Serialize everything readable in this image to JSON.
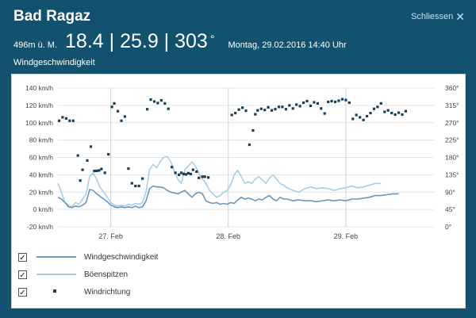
{
  "header": {
    "station": "Bad Ragaz",
    "elevation": "496m ü. M.",
    "values": "18.4 | 25.9 | 303",
    "degree": "°",
    "datetime": "Montag, 29.02.2016 14:40 Uhr",
    "close_label": "Schliessen"
  },
  "section_title": "Windgeschwindigkeit",
  "colors": {
    "background": "#13526f",
    "wind": "#6b98ba",
    "gusts": "#aacde3",
    "direction": "#163f59",
    "grid": "#e4e4e4"
  },
  "legend": [
    {
      "label": "Windgeschwindigkeit",
      "checked": true,
      "symbol": "line"
    },
    {
      "label": "Böenspitzen",
      "checked": true,
      "symbol": "line"
    },
    {
      "label": "Windrichtung",
      "checked": true,
      "symbol": "dot"
    }
  ],
  "chart_data": {
    "type": "line",
    "title": "Windgeschwindigkeit",
    "x_unit": "days since 26 Feb 2016 00:00",
    "xlim": [
      0.55,
      3.75
    ],
    "x_ticks": [
      {
        "x": 1.0,
        "label": "27. Feb"
      },
      {
        "x": 2.0,
        "label": "28. Feb"
      },
      {
        "x": 3.0,
        "label": "29. Feb"
      }
    ],
    "y_left": {
      "ticks": [
        -20,
        0,
        20,
        40,
        60,
        80,
        100,
        120,
        140
      ],
      "unit": "km/h",
      "ylim": [
        -20,
        140
      ]
    },
    "y_right": {
      "ticks": [
        0,
        45,
        90,
        135,
        180,
        225,
        270,
        315,
        360
      ],
      "unit": "°",
      "ylim": [
        0,
        360
      ]
    },
    "grid": {
      "horizontal": true,
      "vertical": true
    },
    "series": [
      {
        "name": "Windgeschwindigkeit",
        "axis": "left",
        "style": "line",
        "points": [
          [
            0.55,
            14
          ],
          [
            0.58,
            12
          ],
          [
            0.61,
            8
          ],
          [
            0.64,
            3
          ],
          [
            0.67,
            2
          ],
          [
            0.7,
            4
          ],
          [
            0.73,
            3
          ],
          [
            0.76,
            5
          ],
          [
            0.79,
            8
          ],
          [
            0.82,
            23
          ],
          [
            0.85,
            22
          ],
          [
            0.88,
            18
          ],
          [
            0.91,
            15
          ],
          [
            0.94,
            12
          ],
          [
            0.97,
            9
          ],
          [
            1.0,
            5
          ],
          [
            1.03,
            3
          ],
          [
            1.06,
            2
          ],
          [
            1.09,
            3
          ],
          [
            1.12,
            2
          ],
          [
            1.15,
            3
          ],
          [
            1.18,
            2
          ],
          [
            1.21,
            4
          ],
          [
            1.24,
            2
          ],
          [
            1.27,
            3
          ],
          [
            1.3,
            10
          ],
          [
            1.33,
            24
          ],
          [
            1.36,
            27
          ],
          [
            1.39,
            26
          ],
          [
            1.42,
            26
          ],
          [
            1.45,
            25
          ],
          [
            1.48,
            22
          ],
          [
            1.51,
            20
          ],
          [
            1.54,
            19
          ],
          [
            1.57,
            18
          ],
          [
            1.6,
            20
          ],
          [
            1.63,
            22
          ],
          [
            1.66,
            18
          ],
          [
            1.69,
            14
          ],
          [
            1.72,
            18
          ],
          [
            1.75,
            20
          ],
          [
            1.78,
            18
          ],
          [
            1.81,
            10
          ],
          [
            1.84,
            8
          ],
          [
            1.87,
            7
          ],
          [
            1.9,
            8
          ],
          [
            1.93,
            6
          ],
          [
            1.96,
            7
          ],
          [
            1.99,
            6
          ],
          [
            2.02,
            8
          ],
          [
            2.05,
            7
          ],
          [
            2.08,
            11
          ],
          [
            2.11,
            14
          ],
          [
            2.14,
            12
          ],
          [
            2.17,
            13
          ],
          [
            2.2,
            12
          ],
          [
            2.23,
            10
          ],
          [
            2.26,
            12
          ],
          [
            2.29,
            11
          ],
          [
            2.32,
            14
          ],
          [
            2.35,
            16
          ],
          [
            2.38,
            12
          ],
          [
            2.41,
            10
          ],
          [
            2.44,
            14
          ],
          [
            2.47,
            12
          ],
          [
            2.5,
            12
          ],
          [
            2.55,
            10
          ],
          [
            2.6,
            11
          ],
          [
            2.65,
            10
          ],
          [
            2.7,
            10
          ],
          [
            2.75,
            9
          ],
          [
            2.8,
            10
          ],
          [
            2.85,
            11
          ],
          [
            2.9,
            10
          ],
          [
            2.95,
            11
          ],
          [
            3.0,
            10
          ],
          [
            3.05,
            12
          ],
          [
            3.1,
            12
          ],
          [
            3.15,
            13
          ],
          [
            3.2,
            14
          ],
          [
            3.25,
            16
          ],
          [
            3.3,
            16
          ],
          [
            3.35,
            17
          ],
          [
            3.4,
            18
          ],
          [
            3.45,
            18
          ]
        ]
      },
      {
        "name": "Böenspitzen",
        "axis": "left",
        "style": "line",
        "points": [
          [
            0.55,
            30
          ],
          [
            0.58,
            20
          ],
          [
            0.61,
            8
          ],
          [
            0.64,
            5
          ],
          [
            0.67,
            3
          ],
          [
            0.7,
            8
          ],
          [
            0.73,
            6
          ],
          [
            0.76,
            12
          ],
          [
            0.79,
            18
          ],
          [
            0.82,
            38
          ],
          [
            0.85,
            42
          ],
          [
            0.88,
            35
          ],
          [
            0.91,
            25
          ],
          [
            0.94,
            20
          ],
          [
            0.97,
            14
          ],
          [
            1.0,
            8
          ],
          [
            1.03,
            5
          ],
          [
            1.06,
            4
          ],
          [
            1.09,
            5
          ],
          [
            1.12,
            4
          ],
          [
            1.15,
            6
          ],
          [
            1.18,
            5
          ],
          [
            1.21,
            7
          ],
          [
            1.24,
            6
          ],
          [
            1.27,
            8
          ],
          [
            1.3,
            20
          ],
          [
            1.33,
            46
          ],
          [
            1.36,
            52
          ],
          [
            1.39,
            48
          ],
          [
            1.42,
            55
          ],
          [
            1.45,
            60
          ],
          [
            1.48,
            61
          ],
          [
            1.51,
            55
          ],
          [
            1.54,
            45
          ],
          [
            1.57,
            35
          ],
          [
            1.6,
            30
          ],
          [
            1.63,
            46
          ],
          [
            1.66,
            50
          ],
          [
            1.69,
            55
          ],
          [
            1.72,
            50
          ],
          [
            1.75,
            42
          ],
          [
            1.78,
            35
          ],
          [
            1.81,
            30
          ],
          [
            1.84,
            22
          ],
          [
            1.87,
            18
          ],
          [
            1.9,
            14
          ],
          [
            1.93,
            16
          ],
          [
            1.96,
            20
          ],
          [
            1.99,
            22
          ],
          [
            2.02,
            28
          ],
          [
            2.05,
            40
          ],
          [
            2.08,
            45
          ],
          [
            2.11,
            38
          ],
          [
            2.14,
            30
          ],
          [
            2.17,
            32
          ],
          [
            2.2,
            30
          ],
          [
            2.23,
            35
          ],
          [
            2.26,
            38
          ],
          [
            2.29,
            34
          ],
          [
            2.32,
            30
          ],
          [
            2.35,
            36
          ],
          [
            2.38,
            40
          ],
          [
            2.41,
            35
          ],
          [
            2.44,
            30
          ],
          [
            2.47,
            28
          ],
          [
            2.5,
            25
          ],
          [
            2.55,
            22
          ],
          [
            2.6,
            20
          ],
          [
            2.65,
            24
          ],
          [
            2.7,
            26
          ],
          [
            2.75,
            24
          ],
          [
            2.8,
            25
          ],
          [
            2.85,
            24
          ],
          [
            2.9,
            22
          ],
          [
            2.95,
            24
          ],
          [
            3.0,
            25
          ],
          [
            3.05,
            27
          ],
          [
            3.1,
            25
          ],
          [
            3.15,
            26
          ],
          [
            3.2,
            28
          ],
          [
            3.25,
            30
          ],
          [
            3.3,
            30
          ]
        ]
      },
      {
        "name": "Windrichtung",
        "axis": "right",
        "style": "dots",
        "points": [
          [
            0.56,
            275
          ],
          [
            0.59,
            284
          ],
          [
            0.62,
            281
          ],
          [
            0.65,
            275
          ],
          [
            0.68,
            275
          ],
          [
            0.72,
            185
          ],
          [
            0.74,
            120
          ],
          [
            0.76,
            148
          ],
          [
            0.8,
            172
          ],
          [
            0.83,
            208
          ],
          [
            0.86,
            145
          ],
          [
            0.88,
            145
          ],
          [
            0.9,
            146
          ],
          [
            0.92,
            150
          ],
          [
            0.95,
            140
          ],
          [
            0.98,
            188
          ],
          [
            1.01,
            311
          ],
          [
            1.03,
            320
          ],
          [
            1.06,
            300
          ],
          [
            1.09,
            275
          ],
          [
            1.12,
            286
          ],
          [
            1.15,
            151
          ],
          [
            1.18,
            113
          ],
          [
            1.21,
            106
          ],
          [
            1.24,
            106
          ],
          [
            1.27,
            125
          ],
          [
            1.31,
            305
          ],
          [
            1.34,
            330
          ],
          [
            1.37,
            325
          ],
          [
            1.4,
            321
          ],
          [
            1.43,
            328
          ],
          [
            1.46,
            320
          ],
          [
            1.49,
            306
          ],
          [
            1.52,
            155
          ],
          [
            1.55,
            140
          ],
          [
            1.58,
            135
          ],
          [
            1.6,
            140
          ],
          [
            1.62,
            137
          ],
          [
            1.64,
            136
          ],
          [
            1.66,
            139
          ],
          [
            1.68,
            137
          ],
          [
            1.7,
            148
          ],
          [
            1.73,
            143
          ],
          [
            1.75,
            127
          ],
          [
            1.78,
            130
          ],
          [
            1.8,
            130
          ],
          [
            1.83,
            128
          ],
          [
            2.03,
            290
          ],
          [
            2.06,
            295
          ],
          [
            2.09,
            304
          ],
          [
            2.12,
            309
          ],
          [
            2.15,
            301
          ],
          [
            2.18,
            213
          ],
          [
            2.21,
            250
          ],
          [
            2.23,
            292
          ],
          [
            2.25,
            302
          ],
          [
            2.28,
            306
          ],
          [
            2.31,
            303
          ],
          [
            2.34,
            310
          ],
          [
            2.37,
            302
          ],
          [
            2.4,
            305
          ],
          [
            2.43,
            311
          ],
          [
            2.46,
            311
          ],
          [
            2.49,
            305
          ],
          [
            2.52,
            315
          ],
          [
            2.55,
            307
          ],
          [
            2.58,
            317
          ],
          [
            2.61,
            313
          ],
          [
            2.64,
            322
          ],
          [
            2.67,
            326
          ],
          [
            2.7,
            314
          ],
          [
            2.73,
            323
          ],
          [
            2.76,
            320
          ],
          [
            2.79,
            307
          ],
          [
            2.82,
            294
          ],
          [
            2.85,
            324
          ],
          [
            2.88,
            326
          ],
          [
            2.91,
            324
          ],
          [
            2.94,
            327
          ],
          [
            2.97,
            331
          ],
          [
            3.0,
            329
          ],
          [
            3.03,
            322
          ],
          [
            3.06,
            280
          ],
          [
            3.09,
            290
          ],
          [
            3.12,
            284
          ],
          [
            3.15,
            277
          ],
          [
            3.18,
            287
          ],
          [
            3.21,
            295
          ],
          [
            3.24,
            306
          ],
          [
            3.27,
            311
          ],
          [
            3.3,
            320
          ],
          [
            3.33,
            298
          ],
          [
            3.36,
            302
          ],
          [
            3.39,
            295
          ],
          [
            3.42,
            291
          ],
          [
            3.45,
            296
          ],
          [
            3.48,
            291
          ],
          [
            3.51,
            300
          ]
        ]
      }
    ]
  }
}
